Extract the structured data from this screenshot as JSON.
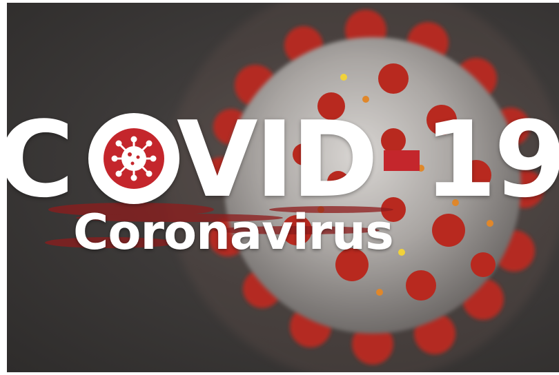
{
  "title": {
    "prefix": "C",
    "middle": "VID",
    "suffix": "19",
    "full": "COVID-19"
  },
  "subtitle": "Coronavirus",
  "colors": {
    "accent_red": "#c4262c",
    "background": "#3e3b3a",
    "text": "#ffffff"
  },
  "icons": {
    "badge": "virus-icon"
  }
}
